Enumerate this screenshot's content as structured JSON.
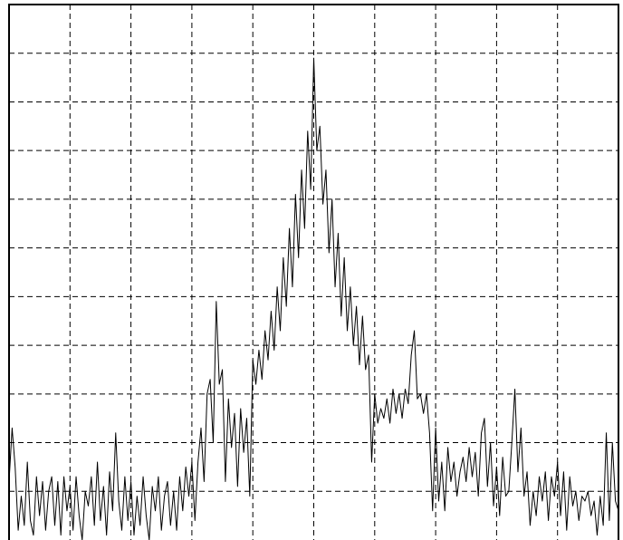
{
  "chart_data": {
    "type": "line",
    "color": "#000000",
    "grid": true,
    "xlim": [
      0,
      10
    ],
    "xticks": [
      1,
      2,
      3,
      4,
      5,
      6,
      7,
      8,
      9
    ],
    "ylim": [
      0,
      11
    ],
    "yticks": [
      1,
      2,
      3,
      4,
      5,
      6,
      7,
      8,
      9,
      10
    ],
    "x": [
      0.0,
      0.05,
      0.1,
      0.15,
      0.2,
      0.25,
      0.3,
      0.35,
      0.4,
      0.45,
      0.5,
      0.55,
      0.6,
      0.65,
      0.7,
      0.75,
      0.8,
      0.85,
      0.9,
      0.95,
      1.0,
      1.05,
      1.1,
      1.15,
      1.2,
      1.25,
      1.3,
      1.35,
      1.4,
      1.45,
      1.5,
      1.55,
      1.6,
      1.65,
      1.7,
      1.75,
      1.8,
      1.85,
      1.9,
      1.95,
      2.0,
      2.05,
      2.1,
      2.15,
      2.2,
      2.25,
      2.3,
      2.35,
      2.4,
      2.45,
      2.5,
      2.55,
      2.6,
      2.65,
      2.7,
      2.75,
      2.8,
      2.85,
      2.9,
      2.95,
      3.0,
      3.05,
      3.1,
      3.15,
      3.2,
      3.25,
      3.3,
      3.35,
      3.4,
      3.45,
      3.5,
      3.55,
      3.6,
      3.65,
      3.7,
      3.75,
      3.8,
      3.85,
      3.9,
      3.95,
      4.0,
      4.05,
      4.1,
      4.15,
      4.2,
      4.25,
      4.3,
      4.35,
      4.4,
      4.45,
      4.5,
      4.55,
      4.6,
      4.65,
      4.7,
      4.75,
      4.8,
      4.85,
      4.9,
      4.95,
      5.0,
      5.05,
      5.1,
      5.15,
      5.2,
      5.25,
      5.3,
      5.35,
      5.4,
      5.45,
      5.5,
      5.55,
      5.6,
      5.65,
      5.7,
      5.75,
      5.8,
      5.85,
      5.9,
      5.95,
      6.0,
      6.05,
      6.1,
      6.15,
      6.2,
      6.25,
      6.3,
      6.35,
      6.4,
      6.45,
      6.5,
      6.55,
      6.6,
      6.65,
      6.7,
      6.75,
      6.8,
      6.85,
      6.9,
      6.95,
      7.0,
      7.05,
      7.1,
      7.15,
      7.2,
      7.25,
      7.3,
      7.35,
      7.4,
      7.45,
      7.5,
      7.55,
      7.6,
      7.65,
      7.7,
      7.75,
      7.8,
      7.85,
      7.9,
      7.95,
      8.0,
      8.05,
      8.1,
      8.15,
      8.2,
      8.25,
      8.3,
      8.35,
      8.4,
      8.45,
      8.5,
      8.55,
      8.6,
      8.65,
      8.7,
      8.75,
      8.8,
      8.85,
      8.9,
      8.95,
      9.0,
      9.05,
      9.1,
      9.15,
      9.2,
      9.25,
      9.3,
      9.35,
      9.4,
      9.45,
      9.5,
      9.55,
      9.6,
      9.65,
      9.7,
      9.75,
      9.8,
      9.85,
      9.9,
      9.95,
      10.0
    ],
    "values": [
      1.2,
      2.3,
      1.5,
      0.2,
      0.9,
      0.3,
      1.6,
      0.4,
      0.1,
      1.3,
      0.5,
      1.2,
      0.2,
      1.0,
      1.3,
      0.3,
      1.2,
      0.1,
      1.3,
      0.6,
      1.1,
      0.2,
      1.3,
      0.5,
      0.0,
      1.0,
      0.7,
      1.3,
      0.3,
      1.6,
      0.4,
      1.1,
      0.1,
      1.4,
      0.6,
      2.2,
      0.8,
      0.2,
      1.3,
      0.4,
      1.2,
      0.1,
      0.9,
      0.3,
      1.3,
      0.5,
      0.0,
      1.1,
      0.6,
      1.3,
      0.2,
      0.9,
      1.2,
      0.3,
      1.0,
      0.2,
      1.3,
      0.6,
      1.5,
      0.9,
      1.6,
      0.4,
      1.6,
      2.3,
      1.2,
      3.0,
      3.3,
      2.0,
      4.9,
      3.2,
      3.5,
      1.2,
      2.9,
      1.9,
      2.6,
      1.1,
      2.7,
      1.8,
      2.5,
      0.9,
      3.7,
      3.2,
      3.9,
      3.3,
      4.3,
      3.7,
      4.7,
      3.9,
      5.2,
      4.3,
      5.8,
      4.8,
      6.4,
      5.2,
      7.1,
      5.8,
      7.6,
      6.4,
      8.4,
      7.2,
      9.9,
      8.0,
      8.5,
      6.9,
      7.6,
      5.9,
      7.0,
      5.2,
      6.3,
      4.6,
      5.8,
      4.3,
      5.2,
      4.0,
      4.8,
      3.6,
      4.6,
      3.5,
      3.8,
      1.6,
      3.0,
      2.4,
      2.7,
      2.5,
      2.9,
      2.4,
      3.1,
      2.6,
      3.0,
      2.5,
      3.1,
      2.8,
      3.8,
      4.3,
      2.9,
      3.0,
      2.6,
      3.0,
      2.2,
      0.6,
      2.3,
      0.8,
      1.6,
      0.6,
      1.9,
      1.2,
      1.6,
      0.9,
      1.4,
      1.7,
      1.2,
      1.9,
      1.3,
      1.8,
      0.9,
      2.2,
      2.5,
      1.1,
      2.0,
      0.7,
      1.5,
      0.5,
      1.7,
      0.9,
      1.0,
      2.0,
      3.1,
      1.4,
      2.3,
      0.9,
      1.4,
      0.3,
      1.0,
      0.5,
      1.3,
      0.8,
      1.4,
      0.4,
      1.3,
      0.9,
      1.6,
      0.5,
      1.4,
      0.2,
      1.3,
      0.7,
      1.0,
      0.4,
      0.9,
      0.8,
      1.0,
      0.5,
      0.8,
      0.1,
      0.9,
      0.3,
      2.2,
      0.4,
      2.0,
      0.8,
      0.6
    ]
  }
}
